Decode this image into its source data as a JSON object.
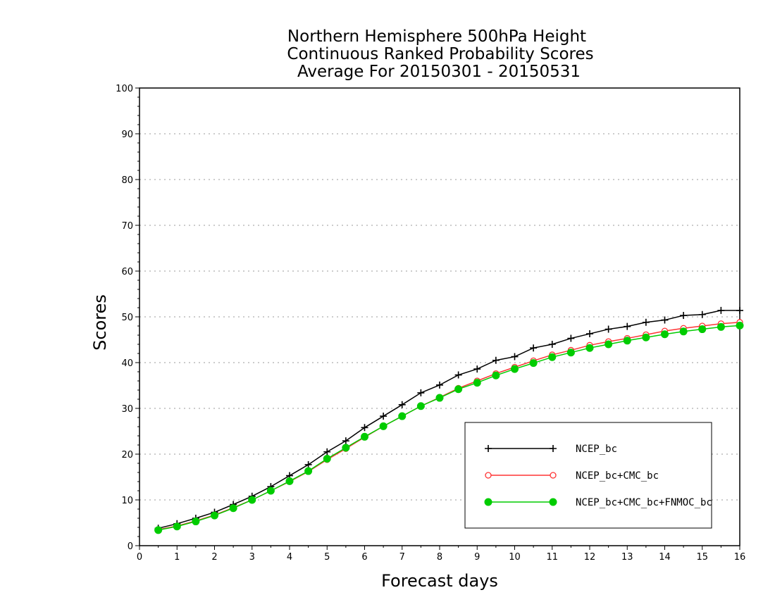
{
  "chart_data": {
    "type": "line",
    "title_lines": [
      "Northern Hemisphere 500hPa Height",
      "Continuous Ranked Probability Scores",
      "Average For 20150301 - 20150531"
    ],
    "xlabel": "Forecast days",
    "ylabel": "Scores",
    "xlim": [
      0,
      16
    ],
    "ylim": [
      0,
      100
    ],
    "xticks": [
      0,
      1,
      2,
      3,
      4,
      5,
      6,
      7,
      8,
      9,
      10,
      11,
      12,
      13,
      14,
      15,
      16
    ],
    "yticks": [
      0,
      10,
      20,
      30,
      40,
      50,
      60,
      70,
      80,
      90,
      100
    ],
    "grid": "horizontal dotted",
    "legend_position": "bottom-right",
    "x": [
      0.5,
      1,
      1.5,
      2,
      2.5,
      3,
      3.5,
      4,
      4.5,
      5,
      5.5,
      6,
      6.5,
      7,
      7.5,
      8,
      8.5,
      9,
      9.5,
      10,
      10.5,
      11,
      11.5,
      12,
      12.5,
      13,
      13.5,
      14,
      14.5,
      15,
      15.5,
      16
    ],
    "series": [
      {
        "name": "NCEP_bc",
        "color": "#000000",
        "marker": "plus",
        "values": [
          3.8,
          4.8,
          6.0,
          7.3,
          9.0,
          10.8,
          12.9,
          15.3,
          17.7,
          20.5,
          22.9,
          25.8,
          28.3,
          30.8,
          33.4,
          35.1,
          37.3,
          38.6,
          40.5,
          41.3,
          43.2,
          44.0,
          45.3,
          46.3,
          47.3,
          47.9,
          48.8,
          49.3,
          50.3,
          50.5,
          51.4,
          51.4
        ]
      },
      {
        "name": "NCEP_bc+CMC_bc",
        "color": "#ff3333",
        "marker": "open-circle",
        "values": [
          3.5,
          4.3,
          5.4,
          6.7,
          8.3,
          10.0,
          12.0,
          14.0,
          16.2,
          18.8,
          21.2,
          23.7,
          26.1,
          28.3,
          30.5,
          32.4,
          34.4,
          36.0,
          37.6,
          39.0,
          40.4,
          41.7,
          42.7,
          43.8,
          44.6,
          45.3,
          46.1,
          46.9,
          47.5,
          48.0,
          48.5,
          48.8
        ]
      },
      {
        "name": "NCEP_bc+CMC_bc+FNMOC_bc",
        "color": "#00cc00",
        "marker": "filled-circle",
        "values": [
          3.4,
          4.2,
          5.3,
          6.6,
          8.2,
          10.0,
          12.0,
          14.1,
          16.3,
          19.0,
          21.4,
          23.8,
          26.1,
          28.3,
          30.5,
          32.3,
          34.2,
          35.6,
          37.2,
          38.6,
          39.9,
          41.2,
          42.2,
          43.2,
          44.0,
          44.8,
          45.5,
          46.2,
          46.8,
          47.3,
          47.8,
          48.1
        ]
      }
    ]
  }
}
